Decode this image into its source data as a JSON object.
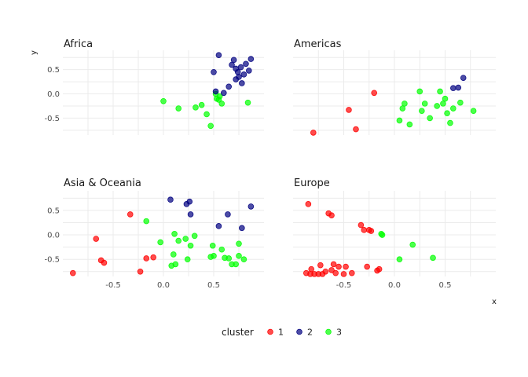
{
  "chart_data": {
    "type": "scatter",
    "xlabel": "x",
    "ylabel": "y",
    "xlim": [
      -1.0,
      1.0
    ],
    "ylim": [
      -0.85,
      0.9
    ],
    "x_ticks": [
      -0.5,
      0.0,
      0.5
    ],
    "x_tick_labels": [
      "-0.5",
      "0.0",
      "0.5"
    ],
    "y_ticks": [
      -0.5,
      0.0,
      0.5
    ],
    "y_tick_labels": [
      "-0.5",
      "0.0",
      "0.5"
    ],
    "grid": true,
    "legend": {
      "title": "cluster",
      "position": "bottom",
      "entries": [
        {
          "label": "1",
          "color": "#ff0000"
        },
        {
          "label": "2",
          "color": "#000080"
        },
        {
          "label": "3",
          "color": "#00ff00"
        }
      ]
    },
    "panels": [
      {
        "title": "Africa",
        "points": [
          {
            "x": 0.0,
            "y": -0.15,
            "cluster": 3
          },
          {
            "x": 0.15,
            "y": -0.3,
            "cluster": 3
          },
          {
            "x": 0.32,
            "y": -0.28,
            "cluster": 3
          },
          {
            "x": 0.38,
            "y": -0.23,
            "cluster": 3
          },
          {
            "x": 0.43,
            "y": -0.42,
            "cluster": 3
          },
          {
            "x": 0.47,
            "y": -0.66,
            "cluster": 3
          },
          {
            "x": 0.52,
            "y": 0.0,
            "cluster": 3
          },
          {
            "x": 0.53,
            "y": -0.1,
            "cluster": 3
          },
          {
            "x": 0.55,
            "y": -0.12,
            "cluster": 3
          },
          {
            "x": 0.56,
            "y": -0.05,
            "cluster": 3
          },
          {
            "x": 0.58,
            "y": -0.2,
            "cluster": 3
          },
          {
            "x": 0.84,
            "y": -0.18,
            "cluster": 3
          },
          {
            "x": 0.5,
            "y": 0.45,
            "cluster": 2
          },
          {
            "x": 0.52,
            "y": 0.05,
            "cluster": 2
          },
          {
            "x": 0.55,
            "y": 0.8,
            "cluster": 2
          },
          {
            "x": 0.6,
            "y": 0.02,
            "cluster": 2
          },
          {
            "x": 0.65,
            "y": 0.15,
            "cluster": 2
          },
          {
            "x": 0.68,
            "y": 0.6,
            "cluster": 2
          },
          {
            "x": 0.7,
            "y": 0.7,
            "cluster": 2
          },
          {
            "x": 0.72,
            "y": 0.52,
            "cluster": 2
          },
          {
            "x": 0.72,
            "y": 0.3,
            "cluster": 2
          },
          {
            "x": 0.74,
            "y": 0.45,
            "cluster": 2
          },
          {
            "x": 0.75,
            "y": 0.35,
            "cluster": 2
          },
          {
            "x": 0.77,
            "y": 0.55,
            "cluster": 2
          },
          {
            "x": 0.78,
            "y": 0.22,
            "cluster": 2
          },
          {
            "x": 0.8,
            "y": 0.4,
            "cluster": 2
          },
          {
            "x": 0.82,
            "y": 0.62,
            "cluster": 2
          },
          {
            "x": 0.85,
            "y": 0.48,
            "cluster": 2
          },
          {
            "x": 0.87,
            "y": 0.72,
            "cluster": 2
          }
        ]
      },
      {
        "title": "Americas",
        "points": [
          {
            "x": -0.8,
            "y": -0.8,
            "cluster": 1
          },
          {
            "x": -0.45,
            "y": -0.33,
            "cluster": 1
          },
          {
            "x": -0.38,
            "y": -0.73,
            "cluster": 1
          },
          {
            "x": -0.2,
            "y": 0.02,
            "cluster": 1
          },
          {
            "x": 0.05,
            "y": -0.55,
            "cluster": 3
          },
          {
            "x": 0.08,
            "y": -0.3,
            "cluster": 3
          },
          {
            "x": 0.1,
            "y": -0.2,
            "cluster": 3
          },
          {
            "x": 0.15,
            "y": -0.63,
            "cluster": 3
          },
          {
            "x": 0.25,
            "y": 0.05,
            "cluster": 3
          },
          {
            "x": 0.27,
            "y": -0.35,
            "cluster": 3
          },
          {
            "x": 0.3,
            "y": -0.2,
            "cluster": 3
          },
          {
            "x": 0.35,
            "y": -0.5,
            "cluster": 3
          },
          {
            "x": 0.42,
            "y": -0.25,
            "cluster": 3
          },
          {
            "x": 0.45,
            "y": 0.05,
            "cluster": 3
          },
          {
            "x": 0.48,
            "y": -0.2,
            "cluster": 3
          },
          {
            "x": 0.5,
            "y": -0.1,
            "cluster": 3
          },
          {
            "x": 0.52,
            "y": -0.4,
            "cluster": 3
          },
          {
            "x": 0.55,
            "y": -0.6,
            "cluster": 3
          },
          {
            "x": 0.58,
            "y": -0.3,
            "cluster": 3
          },
          {
            "x": 0.65,
            "y": -0.18,
            "cluster": 3
          },
          {
            "x": 0.78,
            "y": -0.35,
            "cluster": 3
          },
          {
            "x": 0.58,
            "y": 0.12,
            "cluster": 2
          },
          {
            "x": 0.63,
            "y": 0.13,
            "cluster": 2
          },
          {
            "x": 0.68,
            "y": 0.33,
            "cluster": 2
          }
        ]
      },
      {
        "title": "Asia & Oceania",
        "points": [
          {
            "x": -0.9,
            "y": -0.78,
            "cluster": 1
          },
          {
            "x": -0.67,
            "y": -0.08,
            "cluster": 1
          },
          {
            "x": -0.62,
            "y": -0.52,
            "cluster": 1
          },
          {
            "x": -0.59,
            "y": -0.57,
            "cluster": 1
          },
          {
            "x": -0.33,
            "y": 0.42,
            "cluster": 1
          },
          {
            "x": -0.23,
            "y": -0.75,
            "cluster": 1
          },
          {
            "x": -0.17,
            "y": -0.48,
            "cluster": 1
          },
          {
            "x": -0.1,
            "y": -0.46,
            "cluster": 1
          },
          {
            "x": -0.17,
            "y": 0.28,
            "cluster": 3
          },
          {
            "x": -0.03,
            "y": -0.15,
            "cluster": 3
          },
          {
            "x": 0.08,
            "y": -0.63,
            "cluster": 3
          },
          {
            "x": 0.1,
            "y": -0.4,
            "cluster": 3
          },
          {
            "x": 0.11,
            "y": 0.02,
            "cluster": 3
          },
          {
            "x": 0.12,
            "y": -0.6,
            "cluster": 3
          },
          {
            "x": 0.15,
            "y": -0.12,
            "cluster": 3
          },
          {
            "x": 0.22,
            "y": -0.08,
            "cluster": 3
          },
          {
            "x": 0.24,
            "y": -0.5,
            "cluster": 3
          },
          {
            "x": 0.27,
            "y": -0.22,
            "cluster": 3
          },
          {
            "x": 0.31,
            "y": -0.02,
            "cluster": 3
          },
          {
            "x": 0.47,
            "y": -0.45,
            "cluster": 3
          },
          {
            "x": 0.49,
            "y": -0.22,
            "cluster": 3
          },
          {
            "x": 0.5,
            "y": -0.43,
            "cluster": 3
          },
          {
            "x": 0.58,
            "y": -0.3,
            "cluster": 3
          },
          {
            "x": 0.61,
            "y": -0.47,
            "cluster": 3
          },
          {
            "x": 0.65,
            "y": -0.48,
            "cluster": 3
          },
          {
            "x": 0.68,
            "y": -0.6,
            "cluster": 3
          },
          {
            "x": 0.72,
            "y": -0.6,
            "cluster": 3
          },
          {
            "x": 0.75,
            "y": -0.18,
            "cluster": 3
          },
          {
            "x": 0.75,
            "y": -0.43,
            "cluster": 3
          },
          {
            "x": 0.8,
            "y": -0.5,
            "cluster": 3
          },
          {
            "x": 0.07,
            "y": 0.72,
            "cluster": 2
          },
          {
            "x": 0.23,
            "y": 0.63,
            "cluster": 2
          },
          {
            "x": 0.26,
            "y": 0.68,
            "cluster": 2
          },
          {
            "x": 0.27,
            "y": 0.42,
            "cluster": 2
          },
          {
            "x": 0.55,
            "y": 0.18,
            "cluster": 2
          },
          {
            "x": 0.64,
            "y": 0.42,
            "cluster": 2
          },
          {
            "x": 0.78,
            "y": 0.14,
            "cluster": 2
          },
          {
            "x": 0.87,
            "y": 0.58,
            "cluster": 2
          }
        ]
      },
      {
        "title": "Europe",
        "points": [
          {
            "x": -0.87,
            "y": -0.78,
            "cluster": 1
          },
          {
            "x": -0.85,
            "y": 0.63,
            "cluster": 1
          },
          {
            "x": -0.83,
            "y": -0.8,
            "cluster": 1
          },
          {
            "x": -0.82,
            "y": -0.7,
            "cluster": 1
          },
          {
            "x": -0.79,
            "y": -0.8,
            "cluster": 1
          },
          {
            "x": -0.75,
            "y": -0.8,
            "cluster": 1
          },
          {
            "x": -0.73,
            "y": -0.62,
            "cluster": 1
          },
          {
            "x": -0.71,
            "y": -0.8,
            "cluster": 1
          },
          {
            "x": -0.68,
            "y": -0.75,
            "cluster": 1
          },
          {
            "x": -0.65,
            "y": 0.44,
            "cluster": 1
          },
          {
            "x": -0.62,
            "y": 0.4,
            "cluster": 1
          },
          {
            "x": -0.6,
            "y": -0.6,
            "cluster": 1
          },
          {
            "x": -0.62,
            "y": -0.72,
            "cluster": 1
          },
          {
            "x": -0.58,
            "y": -0.78,
            "cluster": 1
          },
          {
            "x": -0.55,
            "y": -0.65,
            "cluster": 1
          },
          {
            "x": -0.5,
            "y": -0.8,
            "cluster": 1
          },
          {
            "x": -0.48,
            "y": -0.65,
            "cluster": 1
          },
          {
            "x": -0.42,
            "y": -0.78,
            "cluster": 1
          },
          {
            "x": -0.33,
            "y": 0.2,
            "cluster": 1
          },
          {
            "x": -0.3,
            "y": 0.1,
            "cluster": 1
          },
          {
            "x": -0.27,
            "y": -0.65,
            "cluster": 1
          },
          {
            "x": -0.25,
            "y": 0.1,
            "cluster": 1
          },
          {
            "x": -0.23,
            "y": 0.08,
            "cluster": 1
          },
          {
            "x": -0.17,
            "y": -0.73,
            "cluster": 1
          },
          {
            "x": -0.15,
            "y": -0.7,
            "cluster": 1
          },
          {
            "x": -0.13,
            "y": 0.02,
            "cluster": 3
          },
          {
            "x": -0.12,
            "y": 0.0,
            "cluster": 3
          },
          {
            "x": 0.05,
            "y": -0.5,
            "cluster": 3
          },
          {
            "x": 0.18,
            "y": -0.2,
            "cluster": 3
          },
          {
            "x": 0.38,
            "y": -0.47,
            "cluster": 3
          }
        ]
      }
    ]
  }
}
